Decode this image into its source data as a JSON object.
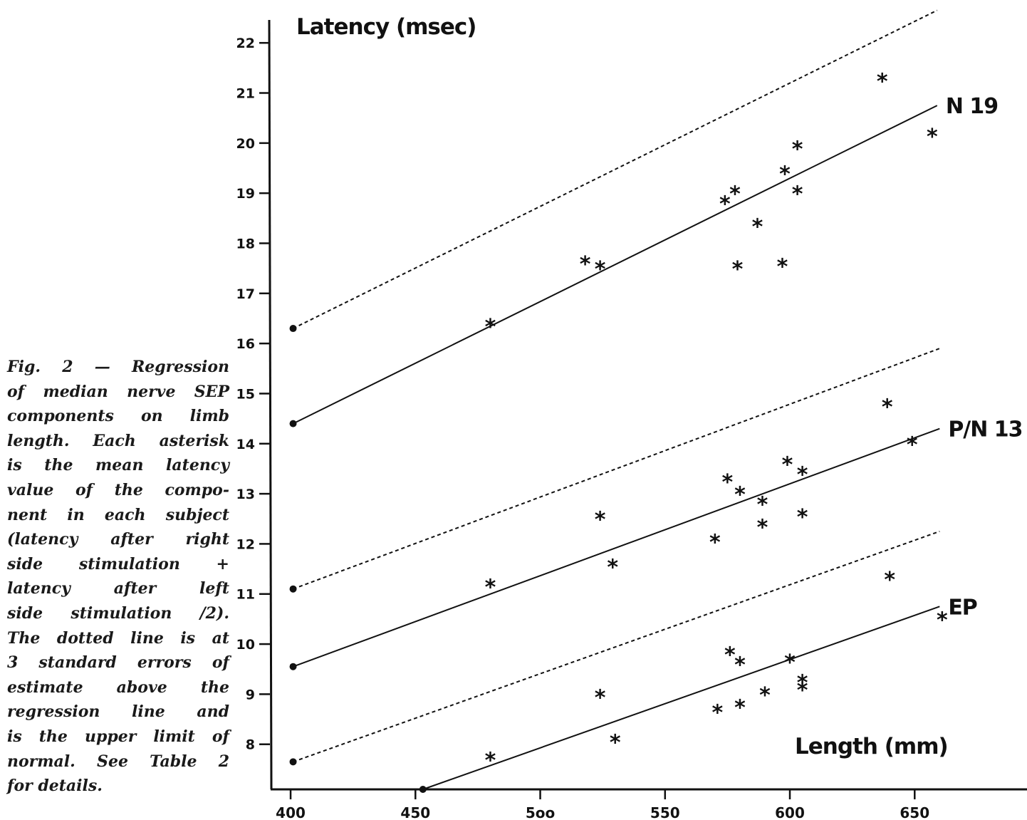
{
  "caption": {
    "lines": [
      "Fig. 2 — Regression",
      "of median nerve SEP",
      "components on limb",
      "length. Each asterisk",
      "is the mean latency",
      "value of the compo-",
      "nent in each subject",
      "(latency after right",
      "side stimulation +",
      "latency after left",
      "side stimulation /2).",
      "The dotted line is at",
      "3 standard errors of",
      "estimate above the",
      "regression line and",
      "is the upper limit of",
      "normal. See Table 2",
      "for details."
    ]
  },
  "colors": {
    "ink": "#111111",
    "background": "#ffffff"
  },
  "chart_data": {
    "type": "scatter",
    "ylabel": "Latency (msec)",
    "xlabel": "Length (mm)",
    "xlim": [
      392,
      695
    ],
    "ylim": [
      7.1,
      22.6
    ],
    "x_ticks": [
      400,
      450,
      500,
      550,
      600,
      650
    ],
    "x_tick_labels": [
      "400",
      "450",
      "5oo",
      "550",
      "600",
      "650"
    ],
    "y_ticks": [
      8,
      9,
      10,
      11,
      12,
      13,
      14,
      15,
      16,
      17,
      18,
      19,
      20,
      21,
      22
    ],
    "y_tick_labels": [
      "8",
      "9",
      "10",
      "11",
      "12",
      "13",
      "14",
      "15",
      "16",
      "17",
      "18",
      "19",
      "20",
      "21",
      "22"
    ],
    "marker": "*",
    "series": [
      {
        "name": "N 19",
        "regression": {
          "x": [
            401,
            659
          ],
          "y": [
            14.4,
            20.75
          ]
        },
        "upper_limit": {
          "x": [
            401,
            659
          ],
          "y": [
            16.3,
            22.65
          ]
        },
        "points": [
          {
            "x": 480,
            "y": 16.4
          },
          {
            "x": 518,
            "y": 17.65
          },
          {
            "x": 524,
            "y": 17.55
          },
          {
            "x": 574,
            "y": 18.85
          },
          {
            "x": 578,
            "y": 19.05
          },
          {
            "x": 579,
            "y": 17.55
          },
          {
            "x": 587,
            "y": 18.4
          },
          {
            "x": 597,
            "y": 17.6
          },
          {
            "x": 598,
            "y": 19.45
          },
          {
            "x": 603,
            "y": 19.95
          },
          {
            "x": 603,
            "y": 19.05
          },
          {
            "x": 637,
            "y": 21.3
          },
          {
            "x": 657,
            "y": 20.2
          }
        ]
      },
      {
        "name": "P/N 13",
        "regression": {
          "x": [
            401,
            660
          ],
          "y": [
            9.55,
            14.3
          ]
        },
        "upper_limit": {
          "x": [
            401,
            660
          ],
          "y": [
            11.1,
            15.9
          ]
        },
        "points": [
          {
            "x": 480,
            "y": 11.2
          },
          {
            "x": 524,
            "y": 12.55
          },
          {
            "x": 529,
            "y": 11.6
          },
          {
            "x": 570,
            "y": 12.1
          },
          {
            "x": 575,
            "y": 13.3
          },
          {
            "x": 580,
            "y": 13.05
          },
          {
            "x": 589,
            "y": 12.85
          },
          {
            "x": 589,
            "y": 12.4
          },
          {
            "x": 599,
            "y": 13.65
          },
          {
            "x": 605,
            "y": 13.45
          },
          {
            "x": 605,
            "y": 12.6
          },
          {
            "x": 639,
            "y": 14.8
          },
          {
            "x": 649,
            "y": 14.05
          }
        ]
      },
      {
        "name": "EP",
        "regression": {
          "x": [
            453,
            660
          ],
          "y": [
            7.1,
            10.75
          ]
        },
        "upper_limit": {
          "x": [
            401,
            660
          ],
          "y": [
            7.65,
            12.25
          ]
        },
        "points": [
          {
            "x": 480,
            "y": 7.75
          },
          {
            "x": 524,
            "y": 9.0
          },
          {
            "x": 530,
            "y": 8.1
          },
          {
            "x": 571,
            "y": 8.7
          },
          {
            "x": 576,
            "y": 9.85
          },
          {
            "x": 580,
            "y": 9.65
          },
          {
            "x": 580,
            "y": 8.8
          },
          {
            "x": 590,
            "y": 9.05
          },
          {
            "x": 600,
            "y": 9.7
          },
          {
            "x": 605,
            "y": 9.3
          },
          {
            "x": 605,
            "y": 9.15
          },
          {
            "x": 640,
            "y": 11.35
          },
          {
            "x": 661,
            "y": 10.55
          }
        ]
      }
    ]
  }
}
